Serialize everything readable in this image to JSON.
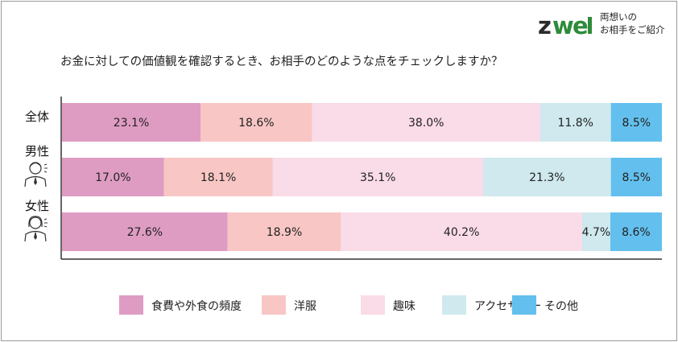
{
  "logo": {
    "wordmark": "zwei",
    "tagline_line1": "両想いの",
    "tagline_line2": "お相手をご紹介",
    "colors": {
      "z": "#2a2a2a",
      "w": "#2e8b3a",
      "e": "#2e8b3a",
      "i": "#2e8b3a"
    }
  },
  "question": "お金に対しての価値観を確認するとき、お相手のどのような点をチェックしますか？",
  "chart_data": {
    "type": "bar",
    "orientation": "horizontal",
    "stacked": true,
    "percent_stacked": true,
    "categories": [
      "全体",
      "男性",
      "女性"
    ],
    "series": [
      {
        "name": "食費や外食の頻度",
        "color": "#df9cc3",
        "values": [
          23.1,
          17.0,
          27.6
        ],
        "labels": [
          "23.1%",
          "17.0%",
          "27.6%"
        ]
      },
      {
        "name": "洋服",
        "color": "#f8c6c4",
        "values": [
          18.6,
          18.1,
          18.9
        ],
        "labels": [
          "18.6%",
          "18.1%",
          "18.9%"
        ]
      },
      {
        "name": "趣味",
        "color": "#fadbe8",
        "values": [
          38.0,
          35.1,
          40.2
        ],
        "labels": [
          "38.0%",
          "35.1%",
          "40.2%"
        ]
      },
      {
        "name": "アクセサリー",
        "color": "#cfe9ee",
        "values": [
          11.8,
          21.3,
          4.7
        ],
        "labels": [
          "11.8%",
          "21.3%",
          "4.7%"
        ]
      },
      {
        "name": "その他",
        "color": "#63c0ee",
        "values": [
          8.5,
          8.5,
          8.6
        ],
        "labels": [
          "8.5%",
          "8.5%",
          "8.6%"
        ]
      }
    ],
    "xlim": [
      0,
      100
    ],
    "grid": false,
    "legend_position": "bottom",
    "row_icons": [
      "",
      "male-person-icon",
      "female-person-icon"
    ]
  }
}
